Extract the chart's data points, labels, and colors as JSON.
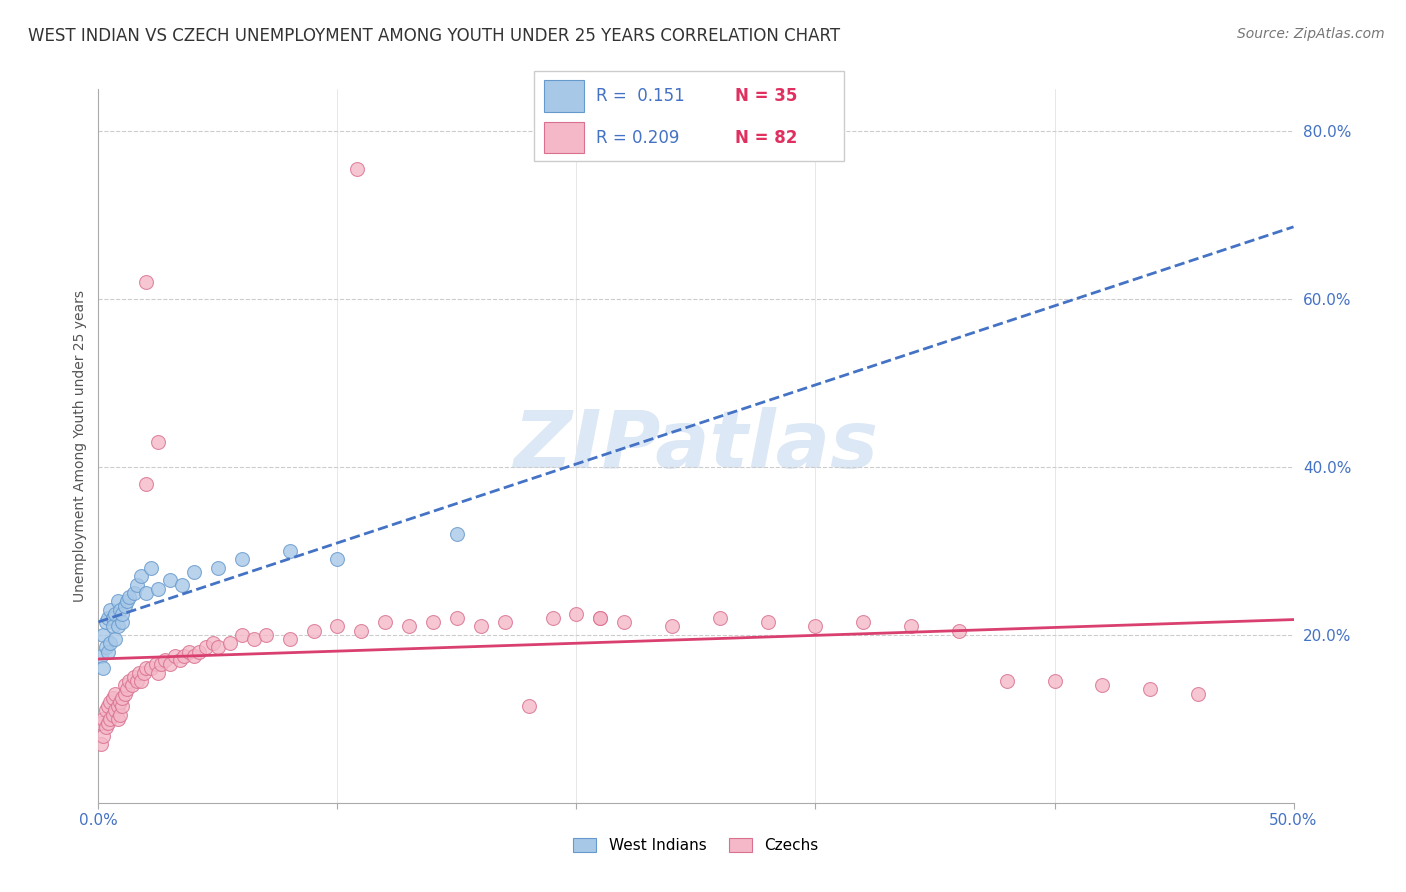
{
  "title": "WEST INDIAN VS CZECH UNEMPLOYMENT AMONG YOUTH UNDER 25 YEARS CORRELATION CHART",
  "source": "Source: ZipAtlas.com",
  "ylabel": "Unemployment Among Youth under 25 years",
  "xlim": [
    0.0,
    0.5
  ],
  "ylim": [
    0.0,
    0.85
  ],
  "xticks": [
    0.0,
    0.1,
    0.2,
    0.3,
    0.4,
    0.5
  ],
  "yticks": [
    0.2,
    0.4,
    0.6,
    0.8
  ],
  "ytick_labels": [
    "20.0%",
    "40.0%",
    "60.0%",
    "80.0%"
  ],
  "xtick_labels": [
    "0.0%",
    "",
    "",
    "",
    "",
    "50.0%"
  ],
  "west_indian_color": "#a8c8e8",
  "west_indian_edge": "#6699cc",
  "czech_color": "#f4b8c8",
  "czech_edge": "#d97090",
  "trend_blue": "#4472c4",
  "trend_pink": "#d94070",
  "legend_R_west": "0.151",
  "legend_N_west": "35",
  "legend_R_czech": "0.209",
  "legend_N_czech": "82",
  "watermark": "ZIPatlas",
  "watermark_color": "#dce8f5",
  "title_fontsize": 12,
  "axis_label_fontsize": 10,
  "tick_fontsize": 11,
  "west_indian_x": [
    0.001,
    0.002,
    0.002,
    0.003,
    0.003,
    0.004,
    0.004,
    0.005,
    0.005,
    0.006,
    0.006,
    0.007,
    0.007,
    0.008,
    0.008,
    0.009,
    0.01,
    0.01,
    0.011,
    0.012,
    0.013,
    0.015,
    0.016,
    0.018,
    0.02,
    0.022,
    0.025,
    0.03,
    0.035,
    0.04,
    0.05,
    0.06,
    0.08,
    0.1,
    0.15
  ],
  "west_indian_y": [
    0.175,
    0.2,
    0.16,
    0.215,
    0.185,
    0.22,
    0.18,
    0.23,
    0.19,
    0.22,
    0.21,
    0.225,
    0.195,
    0.24,
    0.21,
    0.23,
    0.215,
    0.225,
    0.235,
    0.24,
    0.245,
    0.25,
    0.26,
    0.27,
    0.25,
    0.28,
    0.255,
    0.265,
    0.26,
    0.275,
    0.28,
    0.29,
    0.3,
    0.29,
    0.32
  ],
  "czech_x": [
    0.001,
    0.001,
    0.002,
    0.002,
    0.003,
    0.003,
    0.004,
    0.004,
    0.005,
    0.005,
    0.006,
    0.006,
    0.007,
    0.007,
    0.008,
    0.008,
    0.009,
    0.009,
    0.01,
    0.01,
    0.011,
    0.011,
    0.012,
    0.013,
    0.014,
    0.015,
    0.016,
    0.017,
    0.018,
    0.019,
    0.02,
    0.02,
    0.022,
    0.024,
    0.025,
    0.026,
    0.028,
    0.03,
    0.032,
    0.034,
    0.036,
    0.038,
    0.04,
    0.042,
    0.045,
    0.048,
    0.05,
    0.055,
    0.06,
    0.065,
    0.07,
    0.08,
    0.09,
    0.1,
    0.11,
    0.12,
    0.13,
    0.14,
    0.15,
    0.16,
    0.17,
    0.18,
    0.19,
    0.2,
    0.21,
    0.22,
    0.24,
    0.26,
    0.28,
    0.3,
    0.32,
    0.34,
    0.36,
    0.38,
    0.4,
    0.42,
    0.44,
    0.46,
    0.02,
    0.025,
    0.108,
    0.21
  ],
  "czech_y": [
    0.07,
    0.095,
    0.08,
    0.1,
    0.09,
    0.11,
    0.095,
    0.115,
    0.1,
    0.12,
    0.105,
    0.125,
    0.11,
    0.13,
    0.1,
    0.115,
    0.105,
    0.12,
    0.115,
    0.125,
    0.13,
    0.14,
    0.135,
    0.145,
    0.14,
    0.15,
    0.145,
    0.155,
    0.145,
    0.155,
    0.16,
    0.38,
    0.16,
    0.165,
    0.155,
    0.165,
    0.17,
    0.165,
    0.175,
    0.17,
    0.175,
    0.18,
    0.175,
    0.18,
    0.185,
    0.19,
    0.185,
    0.19,
    0.2,
    0.195,
    0.2,
    0.195,
    0.205,
    0.21,
    0.205,
    0.215,
    0.21,
    0.215,
    0.22,
    0.21,
    0.215,
    0.115,
    0.22,
    0.225,
    0.22,
    0.215,
    0.21,
    0.22,
    0.215,
    0.21,
    0.215,
    0.21,
    0.205,
    0.145,
    0.145,
    0.14,
    0.135,
    0.13,
    0.62,
    0.43,
    0.755,
    0.22
  ]
}
